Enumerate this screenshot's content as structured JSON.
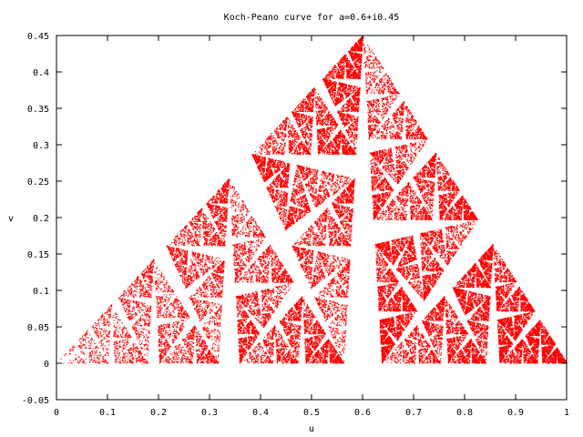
{
  "chart_data": {
    "type": "scatter",
    "title": "Koch-Peano curve for a=0.6+i0.45",
    "xlabel": "u",
    "ylabel": "v",
    "xlim": [
      0,
      1
    ],
    "ylim": [
      -0.05,
      0.45
    ],
    "x_ticks": [
      0,
      0.1,
      0.2,
      0.3,
      0.4,
      0.5,
      0.6,
      0.7,
      0.8,
      0.9,
      1
    ],
    "x_tick_labels": [
      "0",
      "0.1",
      "0.2",
      "0.3",
      "0.4",
      "0.5",
      "0.6",
      "0.7",
      "0.8",
      "0.9",
      "1"
    ],
    "y_ticks": [
      -0.05,
      0,
      0.05,
      0.1,
      0.15,
      0.2,
      0.25,
      0.3,
      0.35,
      0.4,
      0.45
    ],
    "y_tick_labels": [
      "-0.05",
      "0",
      "0.05",
      "0.1",
      "0.15",
      "0.2",
      "0.25",
      "0.3",
      "0.35",
      "0.4",
      "0.45"
    ],
    "grid": false,
    "legend": "none",
    "series": [
      {
        "color": "#ff0000",
        "marker": "dot",
        "region_outlines": [
          [
            [
              0,
              0
            ],
            [
              0.17,
              0.145
            ],
            [
              0.18,
              0
            ]
          ],
          [
            [
              0.19,
              0
            ],
            [
              0.34,
              0.258
            ],
            [
              0.32,
              0
            ]
          ],
          [
            [
              0.35,
              0.258
            ],
            [
              0.57,
              0.38
            ],
            [
              0.6,
              0.45
            ],
            [
              0.56,
              0
            ]
          ],
          [
            [
              0.62,
              0.45
            ],
            [
              0.825,
              0.2
            ],
            [
              0.63,
              0
            ]
          ],
          [
            [
              0.63,
              0.17
            ],
            [
              0.86,
              0.165
            ],
            [
              1,
              0
            ]
          ],
          [
            [
              0.64,
              0.45
            ],
            [
              0.5,
              0.38
            ],
            [
              0.28,
              0.3
            ]
          ]
        ]
      }
    ]
  }
}
